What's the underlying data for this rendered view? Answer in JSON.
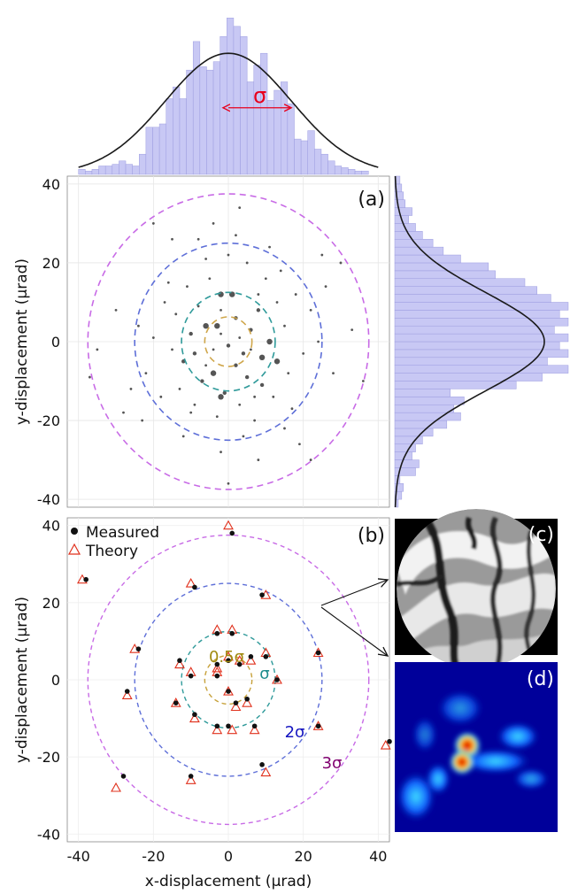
{
  "chart_data": [
    {
      "panel": "top-histogram",
      "type": "bar",
      "description_of_axis": "x-displacement histogram with normal fit",
      "bin_edges": [
        -40,
        -38.2,
        -36.4,
        -34.6,
        -32.8,
        -31,
        -29.2,
        -27.4,
        -25.6,
        -23.8,
        -22,
        -20.2,
        -18.4,
        -16.6,
        -14.8,
        -13,
        -11.2,
        -9.4,
        -7.6,
        -5.8,
        -4,
        -2.2,
        -0.4,
        1.4,
        3.2,
        5,
        6.8,
        8.6,
        10.4,
        12.2,
        14,
        15.8,
        17.6,
        19.4,
        21.2,
        23,
        24.8,
        26.6,
        28.4,
        30.2,
        32,
        33.8,
        35.6,
        37.4
      ],
      "values": [
        0.03,
        0.02,
        0.03,
        0.05,
        0.05,
        0.06,
        0.08,
        0.06,
        0.05,
        0.12,
        0.28,
        0.28,
        0.3,
        0.45,
        0.52,
        0.45,
        0.62,
        0.79,
        0.64,
        0.62,
        0.67,
        0.82,
        0.93,
        0.88,
        0.82,
        0.55,
        0.65,
        0.72,
        0.44,
        0.5,
        0.55,
        0.42,
        0.21,
        0.2,
        0.26,
        0.15,
        0.12,
        0.08,
        0.05,
        0.04,
        0.03,
        0.02,
        0.02
      ],
      "fit": {
        "mean": 0,
        "sigma": 16.8,
        "peak": 0.72
      },
      "annotation": "σ",
      "xlim": [
        -43,
        43
      ]
    },
    {
      "panel": "(a)",
      "type": "scatter",
      "label": "(a)",
      "ylabel": "y-displacement (μrad)",
      "xlim": [
        -43,
        43
      ],
      "ylim": [
        -42,
        42
      ],
      "yticks": [
        -40,
        -20,
        0,
        20,
        40
      ],
      "circles": [
        {
          "name": "0.5σ",
          "radius": 6.3,
          "color": "#cfa64a"
        },
        {
          "name": "σ",
          "radius": 12.5,
          "color": "#2f9a9a"
        },
        {
          "name": "2σ",
          "radius": 25,
          "color": "#5e6fd8"
        },
        {
          "name": "3σ",
          "radius": 37.5,
          "color": "#c86be6"
        }
      ],
      "points": [
        [
          0,
          -1,
          3
        ],
        [
          -3,
          4,
          4
        ],
        [
          -6,
          4,
          4
        ],
        [
          -4,
          -8,
          4
        ],
        [
          -2,
          12,
          4
        ],
        [
          1,
          12,
          4
        ],
        [
          9,
          -4,
          4
        ],
        [
          11,
          0,
          4
        ],
        [
          -2,
          -14,
          4
        ],
        [
          -1,
          -13,
          3
        ],
        [
          4,
          -3,
          3
        ],
        [
          6,
          3,
          3
        ],
        [
          -9,
          -3,
          3
        ],
        [
          -10,
          2,
          3
        ],
        [
          13,
          -5,
          4
        ],
        [
          -12,
          -5,
          3
        ],
        [
          2,
          -6,
          3
        ],
        [
          5,
          -9,
          3
        ],
        [
          -7,
          -10,
          3
        ],
        [
          8,
          8,
          3
        ],
        [
          9,
          -11,
          3
        ],
        [
          2,
          6,
          3
        ],
        [
          -4,
          -2,
          2
        ],
        [
          3,
          1,
          2
        ],
        [
          -2,
          2,
          2
        ],
        [
          6,
          -2,
          2
        ],
        [
          -6,
          -6,
          2
        ],
        [
          8,
          12,
          2
        ],
        [
          -8,
          9,
          2
        ],
        [
          15,
          4,
          2
        ],
        [
          -15,
          -2,
          2
        ],
        [
          16,
          -8,
          2
        ],
        [
          -14,
          7,
          2
        ],
        [
          10,
          16,
          2
        ],
        [
          -11,
          14,
          2
        ],
        [
          3,
          -16,
          2
        ],
        [
          -5,
          16,
          2
        ],
        [
          12,
          -14,
          2
        ],
        [
          -13,
          -12,
          2
        ],
        [
          18,
          12,
          2
        ],
        [
          -17,
          10,
          2
        ],
        [
          20,
          -3,
          2
        ],
        [
          -20,
          1,
          2
        ],
        [
          5,
          20,
          2
        ],
        [
          -6,
          21,
          2
        ],
        [
          14,
          18,
          2
        ],
        [
          -10,
          -18,
          2
        ],
        [
          7,
          -20,
          2
        ],
        [
          0,
          22,
          2
        ],
        [
          -22,
          -8,
          2
        ],
        [
          22,
          8,
          2
        ],
        [
          -18,
          -14,
          2
        ],
        [
          17,
          -17,
          2
        ],
        [
          -3,
          -19,
          2
        ],
        [
          24,
          0,
          2
        ],
        [
          -24,
          4,
          2
        ],
        [
          -26,
          -12,
          2
        ],
        [
          26,
          14,
          2
        ],
        [
          2,
          27,
          2
        ],
        [
          -2,
          -28,
          2
        ],
        [
          11,
          24,
          2
        ],
        [
          -12,
          -24,
          2
        ],
        [
          28,
          -8,
          2
        ],
        [
          -30,
          8,
          2
        ],
        [
          30,
          20,
          2
        ],
        [
          -28,
          -18,
          2
        ],
        [
          8,
          -30,
          2
        ],
        [
          -4,
          30,
          2
        ],
        [
          19,
          -26,
          2
        ],
        [
          -15,
          26,
          2
        ],
        [
          33,
          3,
          2
        ],
        [
          -35,
          -2,
          2
        ],
        [
          3,
          34,
          2
        ],
        [
          0,
          -36,
          2
        ],
        [
          -20,
          30,
          2
        ],
        [
          22,
          -30,
          2
        ],
        [
          36,
          -10,
          2
        ],
        [
          -37,
          -9,
          2
        ],
        [
          4,
          -24,
          2
        ],
        [
          -8,
          26,
          2
        ],
        [
          15,
          -22,
          2
        ],
        [
          -23,
          -20,
          2
        ],
        [
          25,
          22,
          2
        ],
        [
          -2,
          8,
          2
        ],
        [
          7,
          -14,
          2
        ],
        [
          -9,
          -16,
          2
        ],
        [
          13,
          10,
          2
        ],
        [
          -16,
          15,
          2
        ]
      ]
    },
    {
      "panel": "right-histogram",
      "type": "bar",
      "description_of_axis": "y-displacement histogram with normal fit",
      "bin_edges": [
        -42,
        -40,
        -38,
        -36,
        -34,
        -32,
        -30,
        -28,
        -26,
        -24,
        -22,
        -20,
        -18,
        -16,
        -14,
        -12,
        -10,
        -8,
        -6,
        -4,
        -2,
        0,
        2,
        4,
        6,
        8,
        10,
        12,
        14,
        16,
        18,
        20,
        22,
        24,
        26,
        28,
        30,
        32,
        34,
        36,
        38,
        40,
        42
      ],
      "values": [
        0.02,
        0.04,
        0.05,
        0.03,
        0.12,
        0.14,
        0.1,
        0.12,
        0.16,
        0.22,
        0.3,
        0.38,
        0.34,
        0.4,
        0.32,
        0.7,
        0.85,
        1.0,
        0.88,
        1.0,
        0.95,
        1.0,
        0.92,
        1.0,
        0.95,
        1.0,
        0.9,
        0.82,
        0.75,
        0.58,
        0.54,
        0.38,
        0.28,
        0.22,
        0.16,
        0.12,
        0.08,
        0.1,
        0.06,
        0.05,
        0.04,
        0.03
      ],
      "fit": {
        "mean": 0,
        "sigma": 12.5,
        "peak": 0.88
      }
    },
    {
      "panel": "(b)",
      "type": "scatter",
      "label": "(b)",
      "xlabel": "x-displacement (μrad)",
      "ylabel": "y-displacement (μrad)",
      "xlim": [
        -43,
        43
      ],
      "ylim": [
        -42,
        42
      ],
      "xticks": [
        -40,
        -20,
        0,
        20,
        40
      ],
      "yticks": [
        -40,
        -20,
        0,
        20,
        40
      ],
      "legend": {
        "measured": "Measured",
        "theory": "Theory",
        "placement": "top-left"
      },
      "circle_labels": {
        "half": "0.5σ",
        "one": "σ",
        "two": "2σ",
        "three": "3σ"
      },
      "circles": [
        {
          "name": "0.5σ",
          "radius": 6.3,
          "color": "#c7a13a"
        },
        {
          "name": "σ",
          "radius": 12.5,
          "color": "#2f9a9a"
        },
        {
          "name": "2σ",
          "radius": 25,
          "color": "#5e6fd8"
        },
        {
          "name": "3σ",
          "radius": 37.5,
          "color": "#c86be6"
        }
      ],
      "measured": [
        [
          1,
          38
        ],
        [
          -38,
          26
        ],
        [
          -9,
          24
        ],
        [
          9,
          22
        ],
        [
          -24,
          8
        ],
        [
          -13,
          5
        ],
        [
          -3,
          12
        ],
        [
          1,
          12
        ],
        [
          6,
          6
        ],
        [
          10,
          6
        ],
        [
          24,
          7
        ],
        [
          -3,
          4
        ],
        [
          0,
          5
        ],
        [
          3,
          4
        ],
        [
          -14,
          -6
        ],
        [
          -10,
          1
        ],
        [
          -3,
          1
        ],
        [
          0,
          -3
        ],
        [
          2,
          -6
        ],
        [
          5,
          -5
        ],
        [
          13,
          0
        ],
        [
          -27,
          -3
        ],
        [
          -9,
          -9
        ],
        [
          -3,
          -12
        ],
        [
          0,
          -12
        ],
        [
          7,
          -12
        ],
        [
          24,
          -12
        ],
        [
          -10,
          -25
        ],
        [
          -28,
          -25
        ],
        [
          9,
          -22
        ],
        [
          43,
          -16
        ]
      ],
      "theory": [
        [
          0,
          40
        ],
        [
          -39,
          26
        ],
        [
          -10,
          25
        ],
        [
          10,
          22
        ],
        [
          -25,
          8
        ],
        [
          -13,
          4
        ],
        [
          -3,
          13
        ],
        [
          1,
          13
        ],
        [
          6,
          5
        ],
        [
          10,
          7
        ],
        [
          24,
          7
        ],
        [
          -3,
          3
        ],
        [
          0,
          6
        ],
        [
          3,
          5
        ],
        [
          -14,
          -6
        ],
        [
          -10,
          2
        ],
        [
          -3,
          2
        ],
        [
          0,
          -3
        ],
        [
          2,
          -7
        ],
        [
          5,
          -6
        ],
        [
          13,
          0
        ],
        [
          -27,
          -4
        ],
        [
          -9,
          -10
        ],
        [
          -3,
          -13
        ],
        [
          1,
          -13
        ],
        [
          7,
          -13
        ],
        [
          24,
          -12
        ],
        [
          -10,
          -26
        ],
        [
          -30,
          -28
        ],
        [
          10,
          -24
        ],
        [
          42,
          -17
        ]
      ],
      "highlight_point": [
        24,
        7
      ]
    },
    {
      "panel": "(c)",
      "type": "image",
      "label": "(c)"
    },
    {
      "panel": "(d)",
      "type": "heatmap",
      "label": "(d)"
    }
  ]
}
